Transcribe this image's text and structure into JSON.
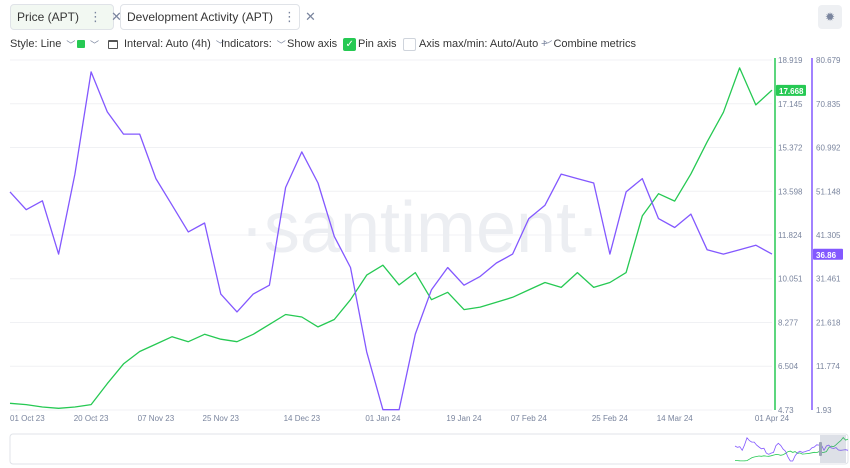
{
  "tabs": [
    {
      "label": "Price (APT)",
      "color": "#26c953"
    },
    {
      "label": "Development Activity (APT)",
      "color": "#8358ff"
    }
  ],
  "icons": {
    "more": "more-dots-icon",
    "close": "close-icon",
    "settings": "settings-gear-icon"
  },
  "toolbar": {
    "style_label": "Style: Line",
    "interval_label": "Interval: Auto (4h)",
    "indicators_label": "Indicators:",
    "show_axis_label": "Show axis",
    "show_axis_checked": true,
    "pin_axis_label": "Pin axis",
    "pin_axis_checked": false,
    "axis_minmax_label": "Axis max/min: Auto/Auto",
    "combine_label": "Combine metrics"
  },
  "watermark": "·santiment·",
  "chart_data": {
    "type": "line",
    "x_labels": [
      "01 Oct 23",
      "20 Oct 23",
      "07 Nov 23",
      "25 Nov 23",
      "14 Dec 23",
      "01 Jan 24",
      "19 Jan 24",
      "07 Feb 24",
      "25 Feb 24",
      "14 Mar 24",
      "01 Apr 24"
    ],
    "x": [
      "01 Oct 23",
      "05 Oct 23",
      "10 Oct 23",
      "15 Oct 23",
      "18 Oct 23",
      "20 Oct 23",
      "23 Oct 23",
      "27 Oct 23",
      "01 Nov 23",
      "07 Nov 23",
      "12 Nov 23",
      "18 Nov 23",
      "21 Nov 23",
      "25 Nov 23",
      "28 Nov 23",
      "03 Dec 23",
      "08 Dec 23",
      "12 Dec 23",
      "14 Dec 23",
      "18 Dec 23",
      "22 Dec 23",
      "26 Dec 23",
      "29 Dec 23",
      "01 Jan 24",
      "04 Jan 24",
      "08 Jan 24",
      "12 Jan 24",
      "16 Jan 24",
      "19 Jan 24",
      "23 Jan 24",
      "27 Jan 24",
      "01 Feb 24",
      "07 Feb 24",
      "11 Feb 24",
      "15 Feb 24",
      "19 Feb 24",
      "22 Feb 24",
      "25 Feb 24",
      "29 Feb 24",
      "04 Mar 24",
      "09 Mar 24",
      "14 Mar 24",
      "18 Mar 24",
      "21 Mar 24",
      "24 Mar 24",
      "26 Mar 24",
      "28 Mar 24",
      "30 Mar 24"
    ],
    "series": [
      {
        "name": "Price (APT)",
        "axis": "left",
        "color": "#26c953",
        "current_value": "17.668",
        "values": [
          5.0,
          4.95,
          4.85,
          4.8,
          4.85,
          4.95,
          5.8,
          6.6,
          7.1,
          7.4,
          7.7,
          7.5,
          7.8,
          7.6,
          7.5,
          7.8,
          8.2,
          8.6,
          8.5,
          8.1,
          8.4,
          9.2,
          10.2,
          10.6,
          9.8,
          10.3,
          9.2,
          9.5,
          8.8,
          8.9,
          9.1,
          9.3,
          9.6,
          9.9,
          9.7,
          10.3,
          9.7,
          9.9,
          10.3,
          12.6,
          13.5,
          13.2,
          14.3,
          15.6,
          16.8,
          18.6,
          17.1,
          17.7
        ]
      },
      {
        "name": "Development Activity (APT)",
        "axis": "right",
        "color": "#8358ff",
        "current_value": "36.86",
        "values": [
          51,
          47,
          49,
          37,
          55,
          78,
          69,
          64,
          64,
          54,
          48,
          42,
          44,
          28,
          24,
          28,
          30,
          52,
          60,
          53,
          41,
          34,
          15,
          2,
          2,
          19,
          29,
          34,
          30,
          32,
          35,
          37,
          45,
          48,
          55,
          54,
          53,
          37,
          51,
          54,
          45,
          43,
          46,
          38,
          37,
          38,
          39,
          37
        ]
      }
    ],
    "left_axis": {
      "ticks": [
        "18.919",
        "17.145",
        "15.372",
        "13.598",
        "11.824",
        "10.051",
        "8.277",
        "6.504",
        "4.73"
      ],
      "ylim": [
        4.73,
        18.919
      ]
    },
    "right_axis": {
      "ticks": [
        "80.679",
        "70.835",
        "60.992",
        "51.148",
        "41.305",
        "31.461",
        "21.618",
        "11.774",
        "1.93"
      ],
      "ylim": [
        1.93,
        80.679
      ]
    },
    "grid": true
  }
}
